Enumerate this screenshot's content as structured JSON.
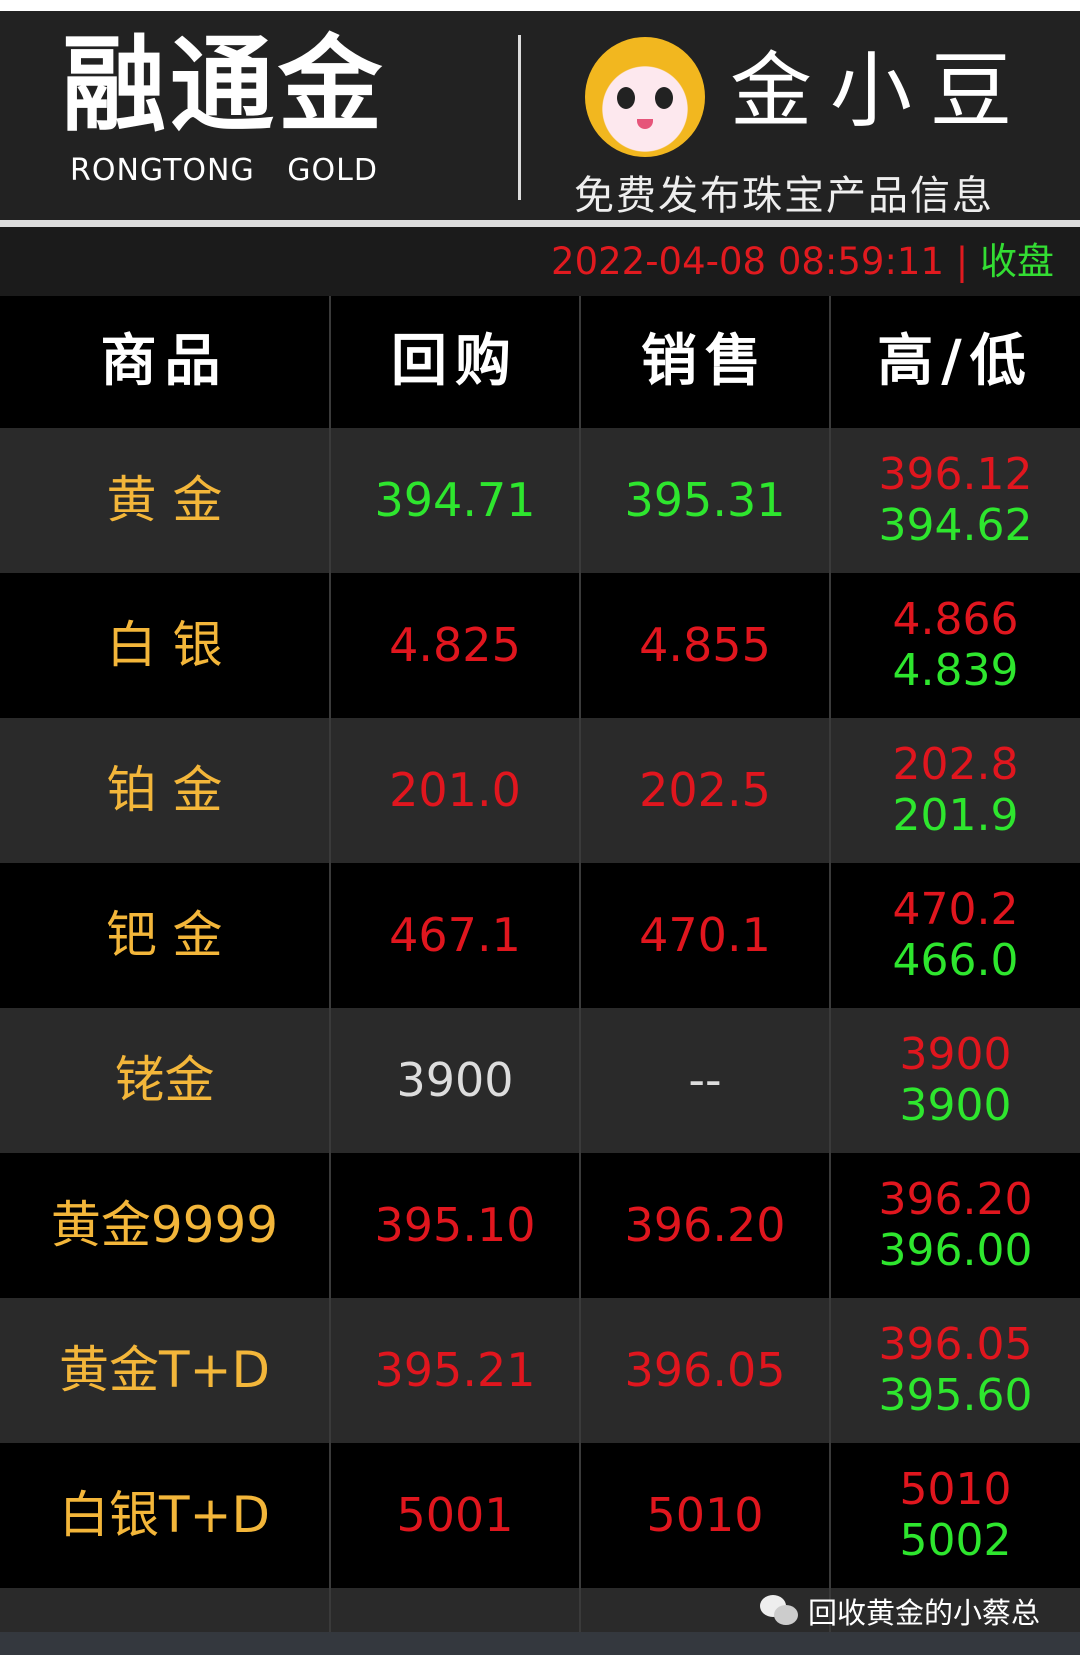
{
  "header": {
    "brand_cn": "融通金",
    "brand_en": "RONGTONG GOLD",
    "partner_cn": "金小豆",
    "partner_slogan": "免费发布珠宝产品信息"
  },
  "status": {
    "timestamp": "2022-04-08 08:59:11",
    "separator": "|",
    "state": "收盘"
  },
  "columns": [
    "商品",
    "回购",
    "销售",
    "高/低"
  ],
  "rows": [
    {
      "name": "黄 金",
      "buy": "394.71",
      "sell": "395.31",
      "high": "396.12",
      "low": "394.62",
      "buy_color": "green",
      "sell_color": "green"
    },
    {
      "name": "白 银",
      "buy": "4.825",
      "sell": "4.855",
      "high": "4.866",
      "low": "4.839",
      "buy_color": "red",
      "sell_color": "red"
    },
    {
      "name": "铂 金",
      "buy": "201.0",
      "sell": "202.5",
      "high": "202.8",
      "low": "201.9",
      "buy_color": "red",
      "sell_color": "red"
    },
    {
      "name": "钯 金",
      "buy": "467.1",
      "sell": "470.1",
      "high": "470.2",
      "low": "466.0",
      "buy_color": "red",
      "sell_color": "red"
    },
    {
      "name": "铑金",
      "buy": "3900",
      "sell": "--",
      "high": "3900",
      "low": "3900",
      "buy_color": "white",
      "sell_color": "white"
    },
    {
      "name": "黄金9999",
      "buy": "395.10",
      "sell": "396.20",
      "high": "396.20",
      "low": "396.00",
      "buy_color": "red",
      "sell_color": "red"
    },
    {
      "name": "黄金T+D",
      "buy": "395.21",
      "sell": "396.05",
      "high": "396.05",
      "low": "395.60",
      "buy_color": "red",
      "sell_color": "red"
    },
    {
      "name": "白银T+D",
      "buy": "5001",
      "sell": "5010",
      "high": "5010",
      "low": "5002",
      "buy_color": "red",
      "sell_color": "red"
    }
  ],
  "watermark": {
    "icon": "wechat-icon",
    "text": "回收黄金的小蔡总"
  },
  "colors": {
    "up": "#e0161e",
    "down": "#2ee62e",
    "name": "#f3b63a"
  }
}
